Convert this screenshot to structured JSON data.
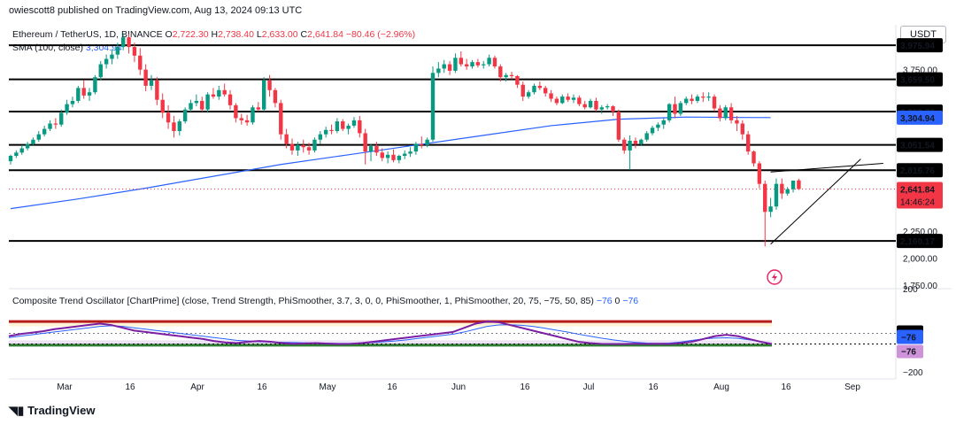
{
  "header": {
    "publisher": "owiescott8 published on TradingView.com, Aug 13, 2024 09:13 UTC",
    "symbol": "Ethereum / TetherUS, 1D, BINANCE",
    "ohlc": [
      {
        "k": "O",
        "v": "2,722.30"
      },
      {
        "k": "H",
        "v": "2,738.40"
      },
      {
        "k": "L",
        "v": "2,633.00"
      },
      {
        "k": "C",
        "v": "2,641.84"
      },
      {
        "k": "",
        "v": "−80.46 (−2.96%)"
      }
    ],
    "sma_label": "SMA (100, close)",
    "sma_value": "3,304.94",
    "currency": "USDT"
  },
  "oscillator": {
    "label": "Composite Trend Oscillator [ChartPrime] (close, Trend Strength, PhiSmoother, 3.7, 3, 0, 0, PhiSmoother, 1, PhiSmoother, 20, 75, −75, 50, 85)",
    "val1": "−76",
    "val2": "0",
    "val3": "−76",
    "axis_labels": [
      "200",
      "0",
      "−76",
      "−76",
      "−200"
    ]
  },
  "footer": {
    "logo_text": "TradingView"
  },
  "colors": {
    "up": "#089981",
    "down": "#f23645",
    "sma": "#2962ff",
    "level": "#000000",
    "osc_purple": "#7b1fa2",
    "osc_blue": "#2962ff",
    "osc_yellow": "#ffc107"
  },
  "chart_data": {
    "type": "candlestick",
    "title": "Ethereum / TetherUS, 1D, BINANCE",
    "ylim": [
      1750,
      4150
    ],
    "y_ticks": [
      "1,750.00",
      "2,000.00",
      "2,250.00",
      "3,750.00"
    ],
    "x_ticks": [
      "Mar",
      "16",
      "Apr",
      "16",
      "May",
      "16",
      "Jun",
      "16",
      "Jul",
      "16",
      "Aug",
      "16",
      "Sep"
    ],
    "levels": [
      3975.94,
      3659.5,
      3360.72,
      3051.54,
      2816.76,
      2160.17
    ],
    "level_labels": [
      "3,975.94",
      "3,659.50",
      "3,360.72",
      "3,051.54",
      "2,816.76",
      "2,160.17"
    ],
    "sma_label": "3,304.94",
    "last_price": "2,641.84",
    "last_price_value": 2641.84,
    "countdown": "14:46:24",
    "candles": [
      [
        2900,
        2960,
        2870,
        2950
      ],
      [
        2950,
        3000,
        2930,
        2980
      ],
      [
        2980,
        3050,
        2960,
        3020
      ],
      [
        3020,
        3080,
        3000,
        3060
      ],
      [
        3060,
        3120,
        3040,
        3100
      ],
      [
        3100,
        3180,
        3080,
        3150
      ],
      [
        3150,
        3230,
        3130,
        3200
      ],
      [
        3200,
        3280,
        3180,
        3250
      ],
      [
        3250,
        3300,
        3200,
        3240
      ],
      [
        3240,
        3380,
        3220,
        3350
      ],
      [
        3350,
        3470,
        3330,
        3430
      ],
      [
        3430,
        3500,
        3400,
        3460
      ],
      [
        3460,
        3600,
        3440,
        3580
      ],
      [
        3580,
        3650,
        3480,
        3510
      ],
      [
        3510,
        3580,
        3460,
        3540
      ],
      [
        3540,
        3700,
        3520,
        3680
      ],
      [
        3680,
        3830,
        3650,
        3800
      ],
      [
        3800,
        3890,
        3760,
        3850
      ],
      [
        3850,
        3940,
        3800,
        3890
      ],
      [
        3890,
        4000,
        3850,
        3960
      ],
      [
        3960,
        4090,
        3930,
        4050
      ],
      [
        4050,
        4080,
        3900,
        3960
      ],
      [
        3960,
        4000,
        3820,
        3880
      ],
      [
        3880,
        3950,
        3700,
        3750
      ],
      [
        3750,
        3800,
        3550,
        3600
      ],
      [
        3600,
        3700,
        3560,
        3650
      ],
      [
        3650,
        3680,
        3420,
        3470
      ],
      [
        3470,
        3530,
        3300,
        3350
      ],
      [
        3350,
        3420,
        3200,
        3260
      ],
      [
        3260,
        3320,
        3120,
        3180
      ],
      [
        3180,
        3290,
        3140,
        3270
      ],
      [
        3270,
        3400,
        3250,
        3380
      ],
      [
        3380,
        3470,
        3360,
        3440
      ],
      [
        3440,
        3520,
        3410,
        3460
      ],
      [
        3460,
        3500,
        3360,
        3380
      ],
      [
        3380,
        3540,
        3350,
        3520
      ],
      [
        3520,
        3580,
        3480,
        3500
      ],
      [
        3500,
        3600,
        3470,
        3560
      ],
      [
        3560,
        3620,
        3500,
        3520
      ],
      [
        3520,
        3560,
        3380,
        3420
      ],
      [
        3420,
        3440,
        3260,
        3300
      ],
      [
        3300,
        3340,
        3240,
        3280
      ],
      [
        3280,
        3330,
        3230,
        3260
      ],
      [
        3260,
        3420,
        3240,
        3400
      ],
      [
        3400,
        3450,
        3360,
        3380
      ],
      [
        3380,
        3680,
        3360,
        3650
      ],
      [
        3650,
        3700,
        3500,
        3560
      ],
      [
        3560,
        3580,
        3400,
        3440
      ],
      [
        3440,
        3470,
        3100,
        3150
      ],
      [
        3150,
        3200,
        3020,
        3060
      ],
      [
        3060,
        3110,
        2960,
        3000
      ],
      [
        3000,
        3080,
        2950,
        3050
      ],
      [
        3050,
        3100,
        2980,
        3030
      ],
      [
        3030,
        3070,
        2960,
        3000
      ],
      [
        3000,
        3120,
        2980,
        3100
      ],
      [
        3100,
        3180,
        3060,
        3150
      ],
      [
        3150,
        3220,
        3120,
        3190
      ],
      [
        3190,
        3240,
        3150,
        3180
      ],
      [
        3180,
        3300,
        3160,
        3270
      ],
      [
        3270,
        3290,
        3180,
        3200
      ],
      [
        3200,
        3250,
        3150,
        3230
      ],
      [
        3230,
        3310,
        3210,
        3280
      ],
      [
        3280,
        3320,
        3120,
        3160
      ],
      [
        3160,
        3200,
        2870,
        2990
      ],
      [
        2990,
        3060,
        2900,
        3040
      ],
      [
        3040,
        3080,
        2950,
        2980
      ],
      [
        2980,
        3020,
        2900,
        2930
      ],
      [
        2930,
        2990,
        2880,
        2960
      ],
      [
        2960,
        3010,
        2890,
        2910
      ],
      [
        2910,
        2960,
        2880,
        2950
      ],
      [
        2950,
        3000,
        2920,
        2970
      ],
      [
        2970,
        3030,
        2940,
        2990
      ],
      [
        2990,
        3080,
        2960,
        3060
      ],
      [
        3060,
        3130,
        3020,
        3050
      ],
      [
        3050,
        3120,
        3030,
        3100
      ],
      [
        3100,
        3780,
        3080,
        3720
      ],
      [
        3720,
        3820,
        3680,
        3760
      ],
      [
        3760,
        3840,
        3720,
        3800
      ],
      [
        3800,
        3830,
        3700,
        3740
      ],
      [
        3740,
        3900,
        3720,
        3860
      ],
      [
        3860,
        3920,
        3780,
        3800
      ],
      [
        3800,
        3850,
        3750,
        3780
      ],
      [
        3780,
        3840,
        3760,
        3820
      ],
      [
        3820,
        3850,
        3770,
        3790
      ],
      [
        3790,
        3830,
        3760,
        3800
      ],
      [
        3800,
        3890,
        3780,
        3860
      ],
      [
        3860,
        3880,
        3760,
        3780
      ],
      [
        3780,
        3800,
        3640,
        3680
      ],
      [
        3680,
        3720,
        3640,
        3700
      ],
      [
        3700,
        3730,
        3660,
        3690
      ],
      [
        3690,
        3700,
        3580,
        3610
      ],
      [
        3610,
        3640,
        3460,
        3500
      ],
      [
        3500,
        3560,
        3480,
        3540
      ],
      [
        3540,
        3620,
        3520,
        3600
      ],
      [
        3600,
        3640,
        3560,
        3580
      ],
      [
        3580,
        3600,
        3500,
        3530
      ],
      [
        3530,
        3560,
        3450,
        3480
      ],
      [
        3480,
        3500,
        3420,
        3440
      ],
      [
        3440,
        3520,
        3430,
        3500
      ],
      [
        3500,
        3530,
        3450,
        3470
      ],
      [
        3470,
        3520,
        3440,
        3490
      ],
      [
        3490,
        3510,
        3410,
        3430
      ],
      [
        3430,
        3460,
        3380,
        3400
      ],
      [
        3400,
        3480,
        3390,
        3460
      ],
      [
        3460,
        3490,
        3360,
        3380
      ],
      [
        3380,
        3420,
        3340,
        3400
      ],
      [
        3400,
        3430,
        3380,
        3410
      ],
      [
        3410,
        3420,
        3320,
        3360
      ],
      [
        3360,
        3380,
        3080,
        3100
      ],
      [
        3100,
        3120,
        2970,
        3000
      ],
      [
        3000,
        3140,
        2820,
        3090
      ],
      [
        3090,
        3120,
        3020,
        3060
      ],
      [
        3060,
        3110,
        3040,
        3100
      ],
      [
        3100,
        3180,
        3080,
        3160
      ],
      [
        3160,
        3230,
        3140,
        3210
      ],
      [
        3210,
        3260,
        3180,
        3240
      ],
      [
        3240,
        3300,
        3200,
        3280
      ],
      [
        3280,
        3440,
        3260,
        3430
      ],
      [
        3430,
        3500,
        3300,
        3340
      ],
      [
        3340,
        3460,
        3320,
        3440
      ],
      [
        3440,
        3500,
        3420,
        3480
      ],
      [
        3480,
        3520,
        3430,
        3460
      ],
      [
        3460,
        3520,
        3440,
        3500
      ],
      [
        3500,
        3540,
        3450,
        3490
      ],
      [
        3490,
        3540,
        3460,
        3500
      ],
      [
        3500,
        3520,
        3360,
        3390
      ],
      [
        3390,
        3420,
        3270,
        3300
      ],
      [
        3300,
        3420,
        3280,
        3400
      ],
      [
        3400,
        3440,
        3250,
        3280
      ],
      [
        3280,
        3320,
        3180,
        3250
      ],
      [
        3250,
        3280,
        3100,
        3150
      ],
      [
        3150,
        3180,
        2960,
        2990
      ],
      [
        2990,
        3000,
        2850,
        2880
      ],
      [
        2880,
        2900,
        2650,
        2690
      ],
      [
        2690,
        2720,
        2110,
        2430
      ],
      [
        2430,
        2560,
        2380,
        2480
      ],
      [
        2480,
        2740,
        2450,
        2690
      ],
      [
        2690,
        2740,
        2550,
        2600
      ],
      [
        2600,
        2660,
        2580,
        2640
      ],
      [
        2640,
        2720,
        2610,
        2720
      ],
      [
        2722.3,
        2738.4,
        2633,
        2641.84
      ]
    ],
    "sma": [
      [
        0,
        2460
      ],
      [
        12,
        2550
      ],
      [
        24,
        2650
      ],
      [
        36,
        2760
      ],
      [
        48,
        2870
      ],
      [
        60,
        2960
      ],
      [
        72,
        3050
      ],
      [
        84,
        3140
      ],
      [
        96,
        3230
      ],
      [
        108,
        3290
      ],
      [
        120,
        3310
      ],
      [
        130,
        3306
      ],
      [
        135,
        3304.94
      ]
    ],
    "trend_lines": [
      {
        "from": [
          135,
          2130
        ],
        "to": [
          151,
          2920
        ]
      },
      {
        "from": [
          135,
          2800
        ],
        "to": [
          155,
          2880
        ]
      }
    ],
    "osc": {
      "ylim": [
        -200,
        200
      ],
      "upper_zone": [
        50,
        85
      ],
      "lower_zone": [
        -85,
        -50
      ],
      "osc_fast": [
        -20,
        -5,
        5,
        15,
        30,
        40,
        50,
        60,
        70,
        60,
        40,
        20,
        10,
        0,
        -10,
        -20,
        -30,
        -40,
        -55,
        -65,
        -70,
        -60,
        -55,
        -60,
        -70,
        -75,
        -72,
        -70,
        -74,
        -76,
        -75,
        -70,
        -60,
        -50,
        -40,
        -30,
        -20,
        -10,
        0,
        10,
        40,
        70,
        85,
        80,
        60,
        40,
        20,
        0,
        -20,
        -40,
        -60,
        -70,
        -75,
        -76,
        -76,
        -74,
        -76,
        -75,
        -76,
        -70,
        -60,
        -40,
        -20,
        -10,
        -20,
        -40,
        -60,
        -76
      ],
      "osc_slow": [
        -30,
        -20,
        -10,
        0,
        10,
        20,
        30,
        40,
        50,
        55,
        50,
        40,
        30,
        20,
        10,
        0,
        -10,
        -20,
        -30,
        -40,
        -50,
        -55,
        -60,
        -62,
        -64,
        -66,
        -68,
        -70,
        -71,
        -72,
        -72,
        -70,
        -66,
        -60,
        -54,
        -46,
        -36,
        -26,
        -16,
        -6,
        10,
        30,
        50,
        60,
        62,
        58,
        50,
        38,
        24,
        10,
        -6,
        -20,
        -34,
        -46,
        -56,
        -64,
        -70,
        -72,
        -70,
        -62,
        -50,
        -40,
        -34,
        -32,
        -36,
        -46,
        -58,
        -76
      ]
    }
  }
}
